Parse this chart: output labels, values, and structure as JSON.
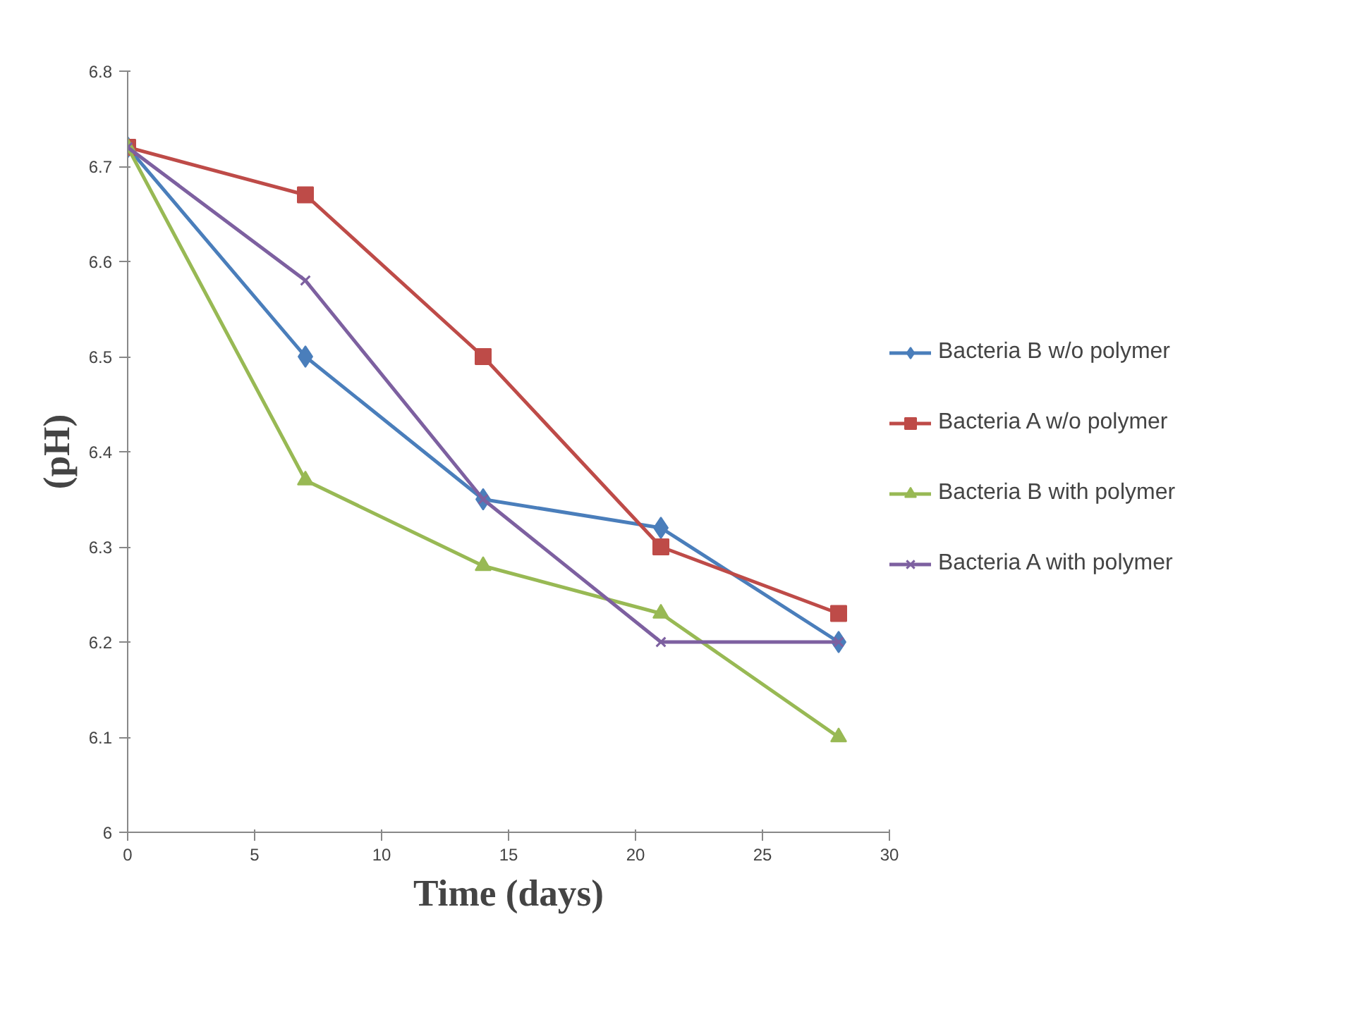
{
  "chart_data": {
    "type": "line",
    "xlabel": "Time (days)",
    "ylabel": "(pH)",
    "x": [
      0,
      7,
      14,
      21,
      28
    ],
    "series": [
      {
        "name": "Bacteria B w/o polymer",
        "color": "#4a7ebb",
        "marker": "diamond",
        "values": [
          6.72,
          6.5,
          6.35,
          6.32,
          6.2
        ]
      },
      {
        "name": "Bacteria A w/o polymer",
        "color": "#be4b48",
        "marker": "square",
        "values": [
          6.72,
          6.67,
          6.5,
          6.3,
          6.23
        ]
      },
      {
        "name": "Bacteria B with polymer",
        "color": "#98b954",
        "marker": "triangle",
        "values": [
          6.72,
          6.37,
          6.28,
          6.23,
          6.1
        ]
      },
      {
        "name": "Bacteria A with polymer",
        "color": "#7d60a0",
        "marker": "cross",
        "values": [
          6.72,
          6.58,
          6.35,
          6.2,
          6.2
        ]
      }
    ],
    "xlim": [
      0,
      30
    ],
    "xticks": [
      0,
      5,
      10,
      15,
      20,
      25,
      30
    ],
    "ylim": [
      6,
      6.8
    ],
    "yticks": [
      6,
      6.1,
      6.2,
      6.3,
      6.4,
      6.5,
      6.6,
      6.7,
      6.8
    ],
    "grid": false,
    "legend": "right"
  }
}
